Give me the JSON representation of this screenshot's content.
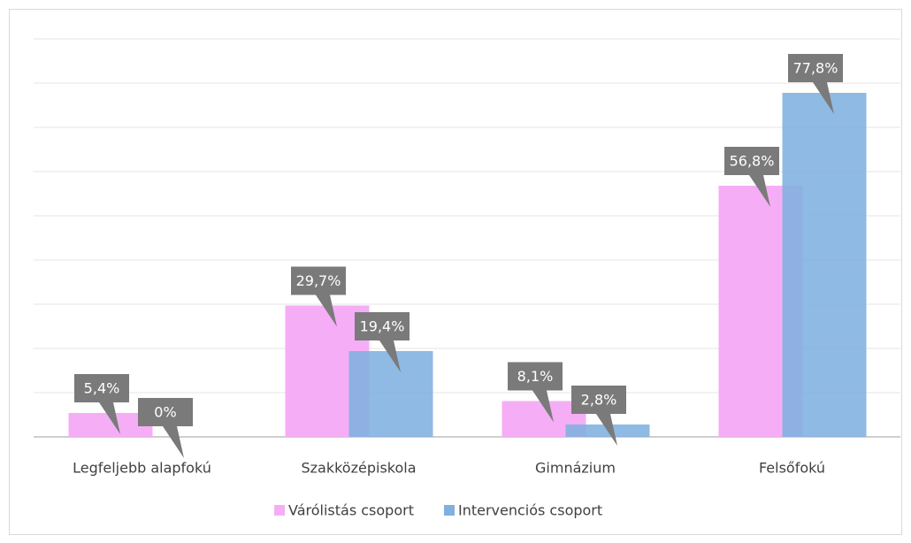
{
  "chart_data": {
    "type": "bar",
    "categories": [
      "Legfeljebb alapfokú",
      "Szakközépiskola",
      "Gimnázium",
      "Felsőfokú"
    ],
    "series": [
      {
        "name": "Várólistás csoport",
        "color": "#f5aef5",
        "values": [
          5.4,
          29.7,
          8.1,
          56.8
        ],
        "value_labels": [
          "5,4%",
          "29,7%",
          "8,1%",
          "56,8%"
        ]
      },
      {
        "name": "Intervenciós csoport",
        "color": "#7fb0df",
        "values": [
          0,
          19.4,
          2.8,
          77.8
        ],
        "value_labels": [
          "0%",
          "19,4%",
          "2,8%",
          "77,8%"
        ]
      }
    ],
    "ylim": [
      0,
      90
    ],
    "yticks": [
      0,
      10,
      20,
      30,
      40,
      50,
      60,
      70,
      80,
      90
    ],
    "grid": true,
    "legend": "bottom"
  }
}
